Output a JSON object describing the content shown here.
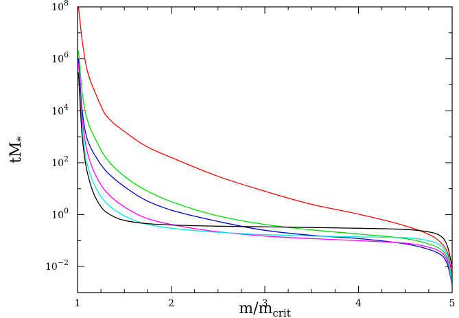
{
  "chart_data": {
    "type": "line",
    "xlabel": {
      "base": "m/m",
      "sub": "crit"
    },
    "ylabel": {
      "base": "tM",
      "sub": "*"
    },
    "xlim": [
      1,
      5
    ],
    "ylim": [
      0.001,
      100000000
    ],
    "yscale": "log",
    "grid": false,
    "x_ticks": [
      {
        "value": 1,
        "label": "1"
      },
      {
        "value": 2,
        "label": "2"
      },
      {
        "value": 3,
        "label": "3"
      },
      {
        "value": 4,
        "label": "4"
      },
      {
        "value": 5,
        "label": "5"
      }
    ],
    "y_ticks": [
      {
        "value": 100000000,
        "base": "10",
        "exp": "8"
      },
      {
        "value": 1000000,
        "base": "10",
        "exp": "6"
      },
      {
        "value": 10000,
        "base": "10",
        "exp": "4"
      },
      {
        "value": 100,
        "base": "10",
        "exp": "2"
      },
      {
        "value": 1,
        "base": "10",
        "exp": "0"
      },
      {
        "value": 0.01,
        "base": "10",
        "exp": "−2"
      }
    ],
    "series": [
      {
        "color": "#ff0000",
        "x": [
          1.01,
          1.05,
          1.1,
          1.2,
          1.3,
          1.5,
          1.75,
          2.0,
          2.5,
          3.0,
          3.5,
          4.0,
          4.5,
          4.8,
          4.9,
          4.95,
          5.0
        ],
        "y": [
          100000000,
          5000000,
          400000,
          40000,
          7000,
          1600,
          400,
          160,
          30,
          8,
          2.5,
          1.05,
          0.37,
          0.14,
          0.07,
          0.035,
          0.005
        ]
      },
      {
        "color": "#00dd00",
        "x": [
          1.01,
          1.05,
          1.1,
          1.2,
          1.3,
          1.5,
          1.75,
          2.0,
          2.5,
          3.0,
          3.5,
          4.0,
          4.5,
          4.8,
          4.9,
          4.95,
          5.0
        ],
        "y": [
          2000000,
          50000,
          5000,
          700,
          160,
          30,
          8,
          3.2,
          0.9,
          0.42,
          0.26,
          0.18,
          0.12,
          0.065,
          0.04,
          0.02,
          0.003
        ]
      },
      {
        "color": "#0000cc",
        "x": [
          1.01,
          1.05,
          1.1,
          1.2,
          1.3,
          1.5,
          1.75,
          2.0,
          2.5,
          3.0,
          3.5,
          4.0,
          4.5,
          4.8,
          4.9,
          4.95,
          5.0
        ],
        "y": [
          1000000,
          10000,
          900,
          160,
          50,
          12,
          3.3,
          1.5,
          0.55,
          0.25,
          0.16,
          0.12,
          0.075,
          0.04,
          0.025,
          0.012,
          0.002
        ]
      },
      {
        "color": "#ff00ff",
        "x": [
          1.01,
          1.05,
          1.1,
          1.2,
          1.3,
          1.5,
          1.75,
          2.0,
          2.5,
          3.0,
          3.5,
          4.0,
          4.5,
          4.8,
          4.9,
          4.95,
          5.0
        ],
        "y": [
          700000,
          5000,
          300,
          30,
          8,
          2,
          0.7,
          0.42,
          0.22,
          0.15,
          0.12,
          0.1,
          0.08,
          0.05,
          0.032,
          0.016,
          0.002
        ]
      },
      {
        "color": "#00e5e5",
        "x": [
          1.01,
          1.05,
          1.1,
          1.2,
          1.3,
          1.5,
          1.75,
          2.0,
          2.5,
          3.0,
          3.5,
          4.0,
          4.5,
          4.8,
          4.9,
          4.95,
          5.0
        ],
        "y": [
          300000,
          2000,
          100,
          10,
          3,
          0.9,
          0.42,
          0.3,
          0.21,
          0.17,
          0.15,
          0.14,
          0.13,
          0.09,
          0.055,
          0.025,
          0.002
        ]
      },
      {
        "color": "#000000",
        "x": [
          1.01,
          1.05,
          1.1,
          1.2,
          1.3,
          1.5,
          1.75,
          2.0,
          2.5,
          3.0,
          3.5,
          4.0,
          4.5,
          4.8,
          4.9,
          4.95,
          5.0
        ],
        "y": [
          300000,
          1000,
          50,
          4,
          1.3,
          0.6,
          0.45,
          0.4,
          0.36,
          0.34,
          0.32,
          0.3,
          0.27,
          0.2,
          0.13,
          0.06,
          0.01
        ]
      }
    ]
  }
}
